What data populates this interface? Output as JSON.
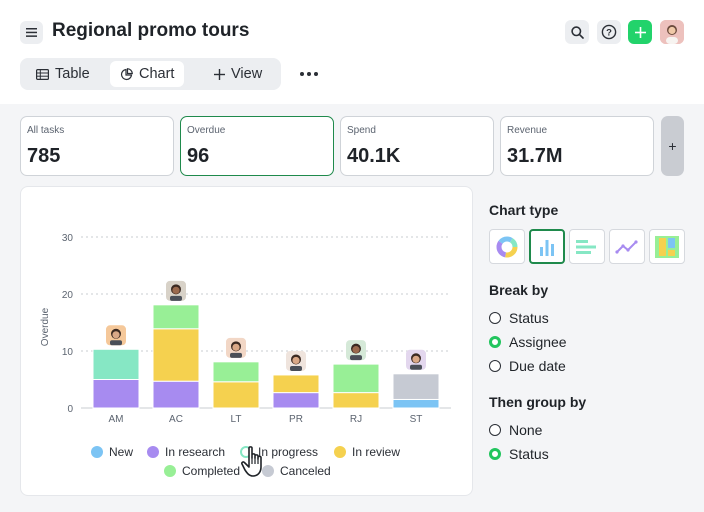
{
  "header": {
    "title": "Regional promo tours"
  },
  "icons": {
    "menu": "menu-icon",
    "search": "search-icon",
    "help": "help-icon",
    "add": "plus-icon",
    "avatar": "user-avatar"
  },
  "tabs": [
    {
      "label": "Table",
      "icon": "table-icon",
      "active": false
    },
    {
      "label": "Chart",
      "icon": "pie-chart-icon",
      "active": true
    },
    {
      "label": "View",
      "icon": "plus-icon",
      "active": false
    }
  ],
  "kpis": [
    {
      "label": "All tasks",
      "value": "785"
    },
    {
      "label": "Overdue",
      "value": "96",
      "selected": true
    },
    {
      "label": "Spend",
      "value": "40.1K"
    },
    {
      "label": "Revenue",
      "value": "31.7M"
    }
  ],
  "kpi_add_label": "+",
  "chart_data": {
    "type": "bar",
    "stacked": true,
    "ylabel": "Overdue",
    "ylim": [
      0,
      30
    ],
    "yticks": [
      0,
      10,
      20,
      30
    ],
    "grid": true,
    "categories": [
      "AM",
      "AC",
      "LT",
      "PR",
      "RJ",
      "ST"
    ],
    "series": [
      {
        "name": "New",
        "color": "#7cc4f4",
        "values": [
          0,
          0,
          0,
          0,
          0,
          1.5
        ]
      },
      {
        "name": "In research",
        "color": "#a78bf0",
        "values": [
          5,
          4.7,
          0,
          2.7,
          0,
          0
        ]
      },
      {
        "name": "In progress",
        "color": "#86e7c4",
        "values": [
          5.3,
          0,
          0,
          0,
          0,
          0
        ]
      },
      {
        "name": "In review",
        "color": "#f5d14f",
        "values": [
          0,
          9.2,
          4.6,
          3.1,
          2.7,
          0
        ]
      },
      {
        "name": "Completed",
        "color": "#98ef96",
        "values": [
          0,
          4.2,
          3.5,
          0,
          5,
          0
        ]
      },
      {
        "name": "Canceled",
        "color": "#c6cad3",
        "values": [
          0,
          0,
          0,
          0,
          0,
          4.5
        ]
      }
    ],
    "legend_position": "bottom"
  },
  "side": {
    "chart_type_heading": "Chart type",
    "chart_types": [
      {
        "name": "donut-chart-icon",
        "selected": false
      },
      {
        "name": "bar-chart-icon",
        "selected": true
      },
      {
        "name": "horizontal-bar-chart-icon",
        "selected": false
      },
      {
        "name": "line-chart-icon",
        "selected": false
      },
      {
        "name": "stacked-area-chart-icon",
        "selected": false
      }
    ],
    "break_by_heading": "Break by",
    "break_by_options": [
      {
        "label": "Status",
        "selected": false
      },
      {
        "label": "Assignee",
        "selected": true
      },
      {
        "label": "Due date",
        "selected": false
      }
    ],
    "then_group_heading": "Then group by",
    "then_group_options": [
      {
        "label": "None",
        "selected": false
      },
      {
        "label": "Status",
        "selected": true
      }
    ]
  },
  "colors": {
    "accent": "#22d36b",
    "selected_border": "#1f8a4c"
  }
}
